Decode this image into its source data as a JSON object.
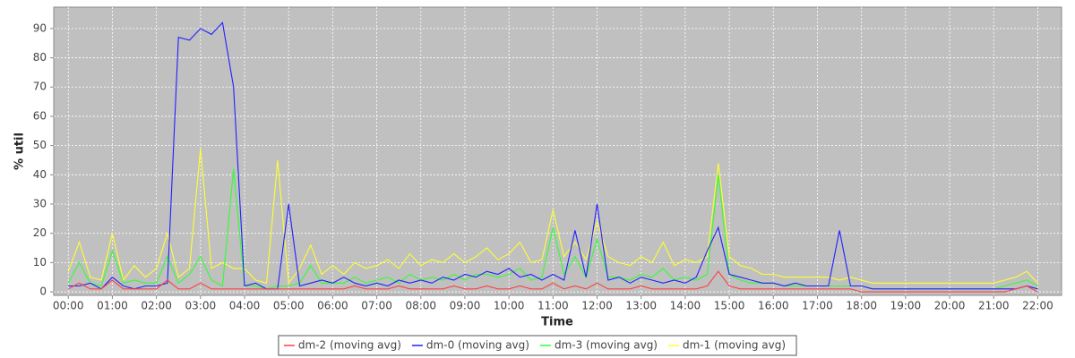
{
  "chart_data": {
    "type": "line",
    "xlabel": "Time",
    "ylabel": "% util",
    "x": [
      0,
      0.25,
      0.5,
      0.75,
      1,
      1.25,
      1.5,
      1.75,
      2,
      2.25,
      2.5,
      2.75,
      3,
      3.25,
      3.5,
      3.75,
      4,
      4.25,
      4.5,
      4.75,
      5,
      5.25,
      5.5,
      5.75,
      6,
      6.25,
      6.5,
      6.75,
      7,
      7.25,
      7.5,
      7.75,
      8,
      8.25,
      8.5,
      8.75,
      9,
      9.25,
      9.5,
      9.75,
      10,
      10.25,
      10.5,
      10.75,
      11,
      11.25,
      11.5,
      11.75,
      12,
      12.25,
      12.5,
      12.75,
      13,
      13.25,
      13.5,
      13.75,
      14,
      14.25,
      14.5,
      14.75,
      15,
      15.25,
      15.5,
      15.75,
      16,
      16.25,
      16.5,
      16.75,
      17,
      17.25,
      17.5,
      17.75,
      18,
      18.25,
      18.5,
      18.75,
      19,
      19.25,
      19.5,
      19.75,
      20,
      20.25,
      20.5,
      20.75,
      21,
      21.25,
      21.5,
      21.75,
      22
    ],
    "series": [
      {
        "name": "dm-2 (moving avg)",
        "color": "#ff4040",
        "values": [
          1,
          3,
          1,
          1,
          4,
          1,
          1,
          1,
          1,
          4,
          1,
          1,
          3,
          1,
          1,
          1,
          1,
          1,
          1,
          1,
          1,
          1,
          1,
          1,
          1,
          1,
          2,
          1,
          1,
          1,
          2,
          1,
          1,
          1,
          1,
          2,
          1,
          1,
          2,
          1,
          1,
          2,
          1,
          1,
          3,
          1,
          2,
          1,
          3,
          1,
          1,
          1,
          2,
          1,
          1,
          1,
          1,
          1,
          2,
          7,
          2,
          1,
          1,
          1,
          1,
          1,
          1,
          1,
          1,
          1,
          1,
          1,
          0,
          0,
          0,
          0,
          0,
          0,
          0,
          0,
          0,
          0,
          0,
          0,
          0,
          0,
          1,
          2,
          0
        ]
      },
      {
        "name": "dm-0 (moving avg)",
        "color": "#2020ff",
        "values": [
          2,
          2,
          3,
          1,
          5,
          2,
          1,
          2,
          2,
          3,
          87,
          86,
          90,
          88,
          92,
          70,
          2,
          3,
          1,
          1,
          30,
          2,
          3,
          4,
          3,
          5,
          3,
          2,
          3,
          2,
          4,
          3,
          4,
          3,
          5,
          4,
          6,
          5,
          7,
          6,
          8,
          5,
          6,
          4,
          6,
          4,
          21,
          5,
          30,
          4,
          5,
          3,
          5,
          4,
          3,
          4,
          3,
          5,
          14,
          22,
          6,
          5,
          4,
          3,
          3,
          2,
          3,
          2,
          2,
          2,
          21,
          2,
          2,
          1,
          1,
          1,
          1,
          1,
          1,
          1,
          1,
          1,
          1,
          1,
          1,
          1,
          1,
          2,
          1
        ]
      },
      {
        "name": "dm-3 (moving avg)",
        "color": "#30ff30",
        "values": [
          3,
          10,
          3,
          2,
          14,
          3,
          4,
          3,
          3,
          12,
          3,
          6,
          12,
          4,
          2,
          42,
          2,
          2,
          1,
          2,
          2,
          3,
          9,
          3,
          3,
          3,
          5,
          3,
          4,
          5,
          3,
          6,
          4,
          5,
          4,
          6,
          4,
          6,
          6,
          5,
          6,
          8,
          4,
          5,
          22,
          6,
          12,
          5,
          18,
          5,
          5,
          4,
          6,
          5,
          8,
          4,
          5,
          4,
          6,
          40,
          6,
          4,
          3,
          3,
          3,
          2,
          2,
          2,
          2,
          2,
          2,
          2,
          2,
          1,
          1,
          1,
          1,
          1,
          1,
          1,
          1,
          1,
          1,
          1,
          1,
          2,
          3,
          4,
          2
        ]
      },
      {
        "name": "dm-1 (moving avg)",
        "color": "#ffff30",
        "values": [
          7,
          17,
          5,
          4,
          20,
          4,
          9,
          5,
          8,
          20,
          5,
          8,
          49,
          8,
          10,
          8,
          8,
          4,
          3,
          45,
          3,
          8,
          16,
          6,
          9,
          6,
          10,
          8,
          9,
          11,
          8,
          13,
          9,
          11,
          10,
          13,
          10,
          12,
          15,
          11,
          13,
          17,
          10,
          11,
          28,
          12,
          17,
          11,
          24,
          12,
          10,
          9,
          12,
          10,
          17,
          9,
          11,
          10,
          12,
          44,
          12,
          9,
          8,
          6,
          6,
          5,
          5,
          5,
          5,
          5,
          4,
          5,
          4,
          3,
          3,
          3,
          3,
          3,
          3,
          3,
          3,
          3,
          3,
          3,
          3,
          4,
          5,
          7,
          3
        ]
      }
    ],
    "xlim": [
      -0.33,
      22.54
    ],
    "ylim": [
      -1.2,
      97.3
    ],
    "xticks": [
      {
        "value": 0,
        "label": "00:00"
      },
      {
        "value": 1,
        "label": "01:00"
      },
      {
        "value": 2,
        "label": "02:00"
      },
      {
        "value": 3,
        "label": "03:00"
      },
      {
        "value": 4,
        "label": "04:00"
      },
      {
        "value": 5,
        "label": "05:00"
      },
      {
        "value": 6,
        "label": "06:00"
      },
      {
        "value": 7,
        "label": "07:00"
      },
      {
        "value": 8,
        "label": "08:00"
      },
      {
        "value": 9,
        "label": "09:00"
      },
      {
        "value": 10,
        "label": "10:00"
      },
      {
        "value": 11,
        "label": "11:00"
      },
      {
        "value": 12,
        "label": "12:00"
      },
      {
        "value": 13,
        "label": "13:00"
      },
      {
        "value": 14,
        "label": "14:00"
      },
      {
        "value": 15,
        "label": "15:00"
      },
      {
        "value": 16,
        "label": "16:00"
      },
      {
        "value": 17,
        "label": "17:00"
      },
      {
        "value": 18,
        "label": "18:00"
      },
      {
        "value": 19,
        "label": "19:00"
      },
      {
        "value": 20,
        "label": "20:00"
      },
      {
        "value": 21,
        "label": "21:00"
      },
      {
        "value": 22,
        "label": "22:00"
      }
    ],
    "yticks": [
      0,
      10,
      20,
      30,
      40,
      50,
      60,
      70,
      80,
      90
    ],
    "grid": true,
    "legend": "bottom"
  }
}
